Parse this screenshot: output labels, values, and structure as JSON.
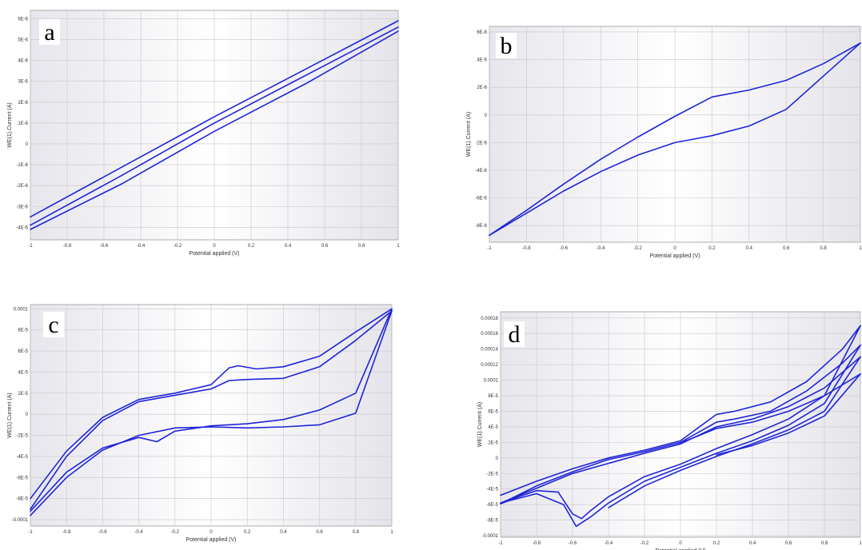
{
  "chart_data": [
    {
      "type": "line",
      "panel_label": "a",
      "xlabel": "Potential applied (V)",
      "ylabel": "WE(1).Current (A)",
      "xlim": [
        -1,
        1
      ],
      "ylim": [
        -4.6e-06,
        6.4e-06
      ],
      "grid": true,
      "xticks": [
        -1,
        -0.8,
        -0.6,
        -0.4,
        -0.2,
        0,
        0.2,
        0.4,
        0.6,
        0.8,
        1
      ],
      "xtick_labels": [
        "-1",
        "-0.8",
        "-0.6",
        "-0.4",
        "-0.2",
        "0",
        "0.2",
        "0.4",
        "0.6",
        "0.8",
        "1"
      ],
      "yticks": [
        -4e-06,
        -3e-06,
        -2e-06,
        -1e-06,
        0,
        1e-06,
        2e-06,
        3e-06,
        4e-06,
        5e-06,
        6e-06
      ],
      "ytick_labels": [
        "-4E-6",
        "-3E-6",
        "-2E-6",
        "-1E-6",
        "0",
        "1E-6",
        "2E-6",
        "3E-6",
        "4E-6",
        "5E-6",
        "6E-6"
      ],
      "series": [
        {
          "x": [
            -1,
            -0.5,
            0,
            0.5,
            1
          ],
          "y": [
            -3.5e-06,
            -1.1e-06,
            1.3e-06,
            3.6e-06,
            5.9e-06
          ]
        },
        {
          "x": [
            -1,
            -0.5,
            0,
            0.5,
            1
          ],
          "y": [
            -3.9e-06,
            -1.5e-06,
            1e-06,
            3.3e-06,
            5.6e-06
          ]
        },
        {
          "x": [
            -1,
            -0.5,
            0,
            0.5,
            1
          ],
          "y": [
            -4.1e-06,
            -1.9e-06,
            6e-07,
            2.9e-06,
            5.4e-06
          ]
        }
      ]
    },
    {
      "type": "line",
      "panel_label": "b",
      "xlabel": "Potential applied (V)",
      "ylabel": "WE(1).Current (A)",
      "xlim": [
        -1,
        1
      ],
      "ylim": [
        -9.2e-06,
        6.4e-06
      ],
      "grid": true,
      "xticks": [
        -1,
        -0.8,
        -0.6,
        -0.4,
        -0.2,
        0,
        0.2,
        0.4,
        0.6,
        0.8,
        1
      ],
      "xtick_labels": [
        "-1",
        "-0.8",
        "-0.6",
        "-0.4",
        "-0.2",
        "0",
        "0.2",
        "0.4",
        "0.6",
        "0.8",
        "1"
      ],
      "yticks": [
        -8e-06,
        -6e-06,
        -4e-06,
        -2e-06,
        0,
        2e-06,
        4e-06,
        6e-06
      ],
      "ytick_labels": [
        "-8E-6",
        "-6E-6",
        "-4E-6",
        "-2E-6",
        "0",
        "2E-6",
        "4E-6",
        "6E-6"
      ],
      "series": [
        {
          "x": [
            -1,
            -0.8,
            -0.6,
            -0.4,
            -0.2,
            0,
            0.2,
            0.4,
            0.6,
            0.8,
            1
          ],
          "y": [
            -8.7e-06,
            -6.9e-06,
            -5e-06,
            -3.2e-06,
            -1.6e-06,
            -1e-07,
            1.3e-06,
            1.8e-06,
            2.5e-06,
            3.7e-06,
            5.2e-06
          ]
        },
        {
          "x": [
            1,
            0.8,
            0.6,
            0.4,
            0.2,
            0,
            -0.2,
            -0.4,
            -0.6,
            -0.8,
            -1
          ],
          "y": [
            5.2e-06,
            2.8e-06,
            4e-07,
            -8e-07,
            -1.5e-06,
            -2e-06,
            -2.9e-06,
            -4.1e-06,
            -5.5e-06,
            -7.1e-06,
            -8.7e-06
          ]
        }
      ]
    },
    {
      "type": "line",
      "panel_label": "c",
      "xlabel": "Potential applied (V)",
      "ylabel": "WE(1).Current (A)",
      "xlim": [
        -1,
        1
      ],
      "ylim": [
        -0.000106,
        0.000104
      ],
      "grid": true,
      "xticks": [
        -1,
        -0.8,
        -0.6,
        -0.4,
        -0.2,
        0,
        0.2,
        0.4,
        0.6,
        0.8,
        1
      ],
      "xtick_labels": [
        "-1",
        "-0.8",
        "-0.6",
        "-0.4",
        "-0.2",
        "0",
        "0.2",
        "0.4",
        "0.6",
        "0.8",
        "1"
      ],
      "yticks": [
        -0.0001,
        -8e-05,
        -6e-05,
        -4e-05,
        -2e-05,
        0,
        2e-05,
        4e-05,
        6e-05,
        8e-05,
        0.0001
      ],
      "ytick_labels": [
        "-0.0001",
        "-8E-5",
        "-6E-5",
        "-4E-5",
        "-2E-5",
        "0",
        "2E-5",
        "4E-5",
        "6E-5",
        "8E-5",
        "0.0001"
      ],
      "series": [
        {
          "x": [
            -1,
            -0.8,
            -0.6,
            -0.4,
            -0.2,
            0,
            0.1,
            0.15,
            0.25,
            0.4,
            0.6,
            0.8,
            1
          ],
          "y": [
            -8e-05,
            -3.5e-05,
            -3e-06,
            1.4e-05,
            2e-05,
            2.8e-05,
            4.4e-05,
            4.6e-05,
            4.3e-05,
            4.5e-05,
            5.5e-05,
            7.8e-05,
            0.0001
          ]
        },
        {
          "x": [
            1,
            0.8,
            0.6,
            0.4,
            0.2,
            0,
            -0.2,
            -0.3,
            -0.4,
            -0.6,
            -0.8,
            -1
          ],
          "y": [
            0.0001,
            2e-05,
            4e-06,
            -5e-06,
            -9e-06,
            -1.1e-05,
            -1.6e-05,
            -2.6e-05,
            -2.2e-05,
            -3.2e-05,
            -5.5e-05,
            -9.2e-05
          ]
        },
        {
          "x": [
            -1,
            -0.8,
            -0.6,
            -0.4,
            -0.2,
            0,
            0.1,
            0.2,
            0.4,
            0.6,
            0.8,
            1
          ],
          "y": [
            -9e-05,
            -4e-05,
            -6e-06,
            1.2e-05,
            1.8e-05,
            2.4e-05,
            3.2e-05,
            3.3e-05,
            3.4e-05,
            4.5e-05,
            7e-05,
            9.8e-05
          ]
        },
        {
          "x": [
            1,
            0.8,
            0.6,
            0.4,
            0.2,
            0,
            -0.2,
            -0.4,
            -0.6,
            -0.8,
            -1
          ],
          "y": [
            9.8e-05,
            1e-06,
            -1e-05,
            -1.2e-05,
            -1.3e-05,
            -1.2e-05,
            -1.3e-05,
            -2e-05,
            -3.4e-05,
            -6e-05,
            -9.6e-05
          ]
        }
      ]
    },
    {
      "type": "line",
      "panel_label": "d",
      "xlabel": "Potential applied (V)",
      "ylabel": "WE(1).Current (A)",
      "xlim": [
        -1,
        1
      ],
      "ylim": [
        -0.000102,
        0.000188
      ],
      "grid": true,
      "xticks": [
        -1,
        -0.8,
        -0.6,
        -0.4,
        -0.2,
        0,
        0.2,
        0.4,
        0.6,
        0.8,
        1
      ],
      "xtick_labels": [
        "-1",
        "-0.8",
        "-0.6",
        "-0.4",
        "-0.2",
        "0",
        "0.2",
        "0.4",
        "0.6",
        "0.8",
        "1"
      ],
      "yticks": [
        -0.0001,
        -8e-05,
        -6e-05,
        -4e-05,
        -2e-05,
        0,
        2e-05,
        4e-05,
        6e-05,
        8e-05,
        0.0001,
        0.00012,
        0.00014,
        0.00016,
        0.00018
      ],
      "ytick_labels": [
        "-0.0001",
        "-8E-5",
        "-6E-5",
        "-4E-5",
        "-2E-5",
        "0",
        "2E-5",
        "4E-5",
        "6E-5",
        "8E-5",
        "0.0001",
        "0.00012",
        "0.00014",
        "0.00016",
        "0.00018"
      ],
      "series": [
        {
          "x": [
            -1,
            -0.8,
            -0.6,
            -0.4,
            -0.2,
            0,
            0.2,
            0.3,
            0.5,
            0.7,
            0.9,
            1
          ],
          "y": [
            -4.8e-05,
            -3e-05,
            -1.4e-05,
            0.0,
            1e-05,
            2.2e-05,
            5.6e-05,
            6e-05,
            7.2e-05,
            9.8e-05,
            0.00014,
            0.00017
          ]
        },
        {
          "x": [
            1,
            0.8,
            0.6,
            0.4,
            0.2,
            0,
            -0.2,
            -0.4,
            -0.5,
            -0.55,
            -0.6,
            -0.68,
            -0.8,
            -0.9,
            -1
          ],
          "y": [
            0.00017,
            8e-05,
            5e-05,
            3e-05,
            1.2e-05,
            -8e-06,
            -2.4e-05,
            -5e-05,
            -6.8e-05,
            -7.8e-05,
            -7.2e-05,
            -4.4e-05,
            -4.2e-05,
            -5e-05,
            -5.9e-05
          ]
        },
        {
          "x": [
            -1,
            -0.8,
            -0.6,
            -0.4,
            -0.2,
            0,
            0.2,
            0.3,
            0.5,
            0.7,
            0.9,
            1
          ],
          "y": [
            -5.9e-05,
            -3.6e-05,
            -1.8e-05,
            -2e-06,
            8e-06,
            2e-05,
            4.6e-05,
            5e-05,
            6e-05,
            8.6e-05,
            0.000122,
            0.000145
          ]
        },
        {
          "x": [
            1,
            0.8,
            0.6,
            0.4,
            0.2,
            0,
            -0.2,
            -0.4,
            -0.5,
            -0.58,
            -0.65,
            -0.8,
            -1
          ],
          "y": [
            0.000145,
            7e-05,
            4.2e-05,
            2.2e-05,
            6e-06,
            -1.2e-05,
            -3e-05,
            -5.8e-05,
            -7.6e-05,
            -8.8e-05,
            -6e-05,
            -4.6e-05,
            -5.8e-05
          ]
        },
        {
          "x": [
            -1,
            -0.6,
            -0.2,
            0,
            0.2,
            0.4,
            0.6,
            0.8,
            1
          ],
          "y": [
            -5.8e-05,
            -2e-05,
            6e-06,
            1.8e-05,
            4e-05,
            5e-05,
            6.6e-05,
            9e-05,
            0.00013
          ]
        },
        {
          "x": [
            1,
            0.8,
            0.6,
            0.4,
            0.2,
            0,
            -0.2,
            -0.4
          ],
          "y": [
            0.00013,
            6e-05,
            3.6e-05,
            1.8e-05,
            2e-06,
            -1.6e-05,
            -3.6e-05,
            -6.4e-05
          ]
        },
        {
          "x": [
            0,
            0.2,
            0.4,
            0.6,
            0.8,
            1
          ],
          "y": [
            1.9e-05,
            3.8e-05,
            4.6e-05,
            6e-05,
            8e-05,
            0.000108
          ]
        },
        {
          "x": [
            1,
            0.8,
            0.6,
            0.4,
            0.2
          ],
          "y": [
            0.000108,
            5.4e-05,
            3.2e-05,
            1.6e-05,
            4e-06
          ]
        }
      ]
    }
  ]
}
